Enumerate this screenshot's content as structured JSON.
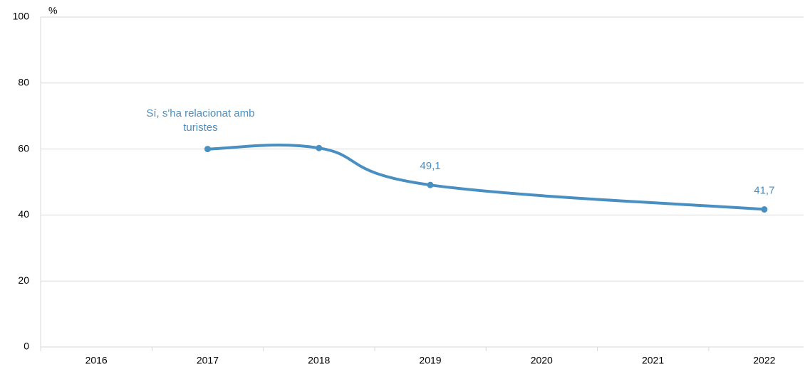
{
  "chart_data": {
    "type": "line",
    "y_label": "%",
    "x": [
      2017,
      2018,
      2019,
      2022
    ],
    "xlim": [
      2015.5,
      2022.5
    ],
    "xticks": [
      2016,
      2017,
      2018,
      2019,
      2020,
      2021,
      2022
    ],
    "ylim": [
      0,
      100
    ],
    "yticks": [
      0,
      20,
      40,
      60,
      80,
      100
    ],
    "grid": true,
    "series": [
      {
        "name": "Sí, s'ha relacionat amb turistes",
        "color": "#4a8fc1",
        "values": [
          60,
          60.3,
          49.1,
          41.7
        ],
        "value_labels": [
          null,
          null,
          "49,1",
          "41,7"
        ]
      }
    ]
  }
}
